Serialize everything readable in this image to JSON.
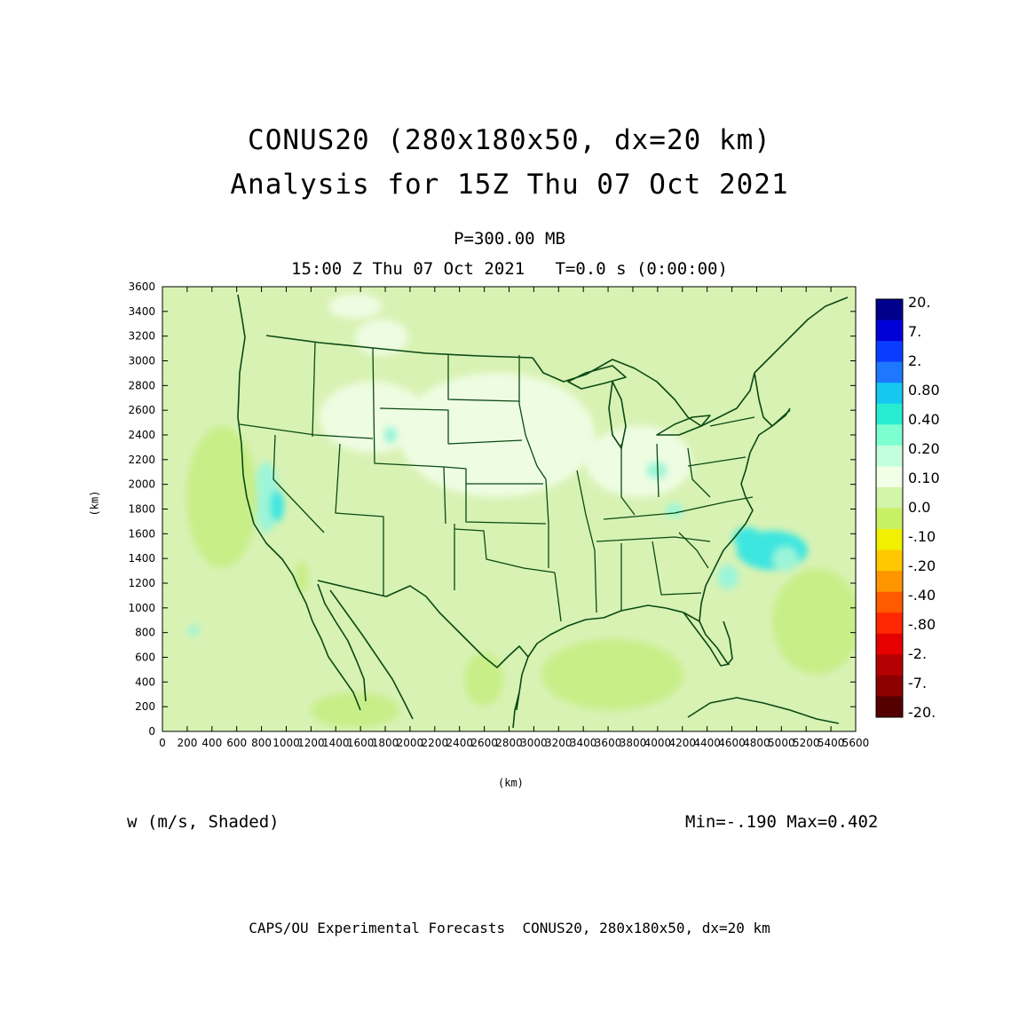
{
  "titles": {
    "line1": "CONUS20 (280x180x50, dx=20 km)",
    "line2": "Analysis for 15Z Thu 07 Oct 2021",
    "pressure": "P=300.00 MB",
    "time_line": "15:00 Z Thu 07 Oct 2021   T=0.0 s (0:00:00)"
  },
  "field_label": "w (m/s, Shaded)",
  "minmax": "Min=-.190 Max=0.402",
  "footer": "CAPS/OU Experimental Forecasts  CONUS20, 280x180x50, dx=20 km",
  "axes": {
    "x_unit": "(km)",
    "y_unit": "(km)",
    "x_ticks": [
      0,
      200,
      400,
      600,
      800,
      1000,
      1200,
      1400,
      1600,
      1800,
      2000,
      2200,
      2400,
      2600,
      2800,
      3000,
      3200,
      3400,
      3600,
      3800,
      4000,
      4200,
      4400,
      4600,
      4800,
      5000,
      5200,
      5400,
      5600
    ],
    "y_ticks": [
      0,
      200,
      400,
      600,
      800,
      1000,
      1200,
      1400,
      1600,
      1800,
      2000,
      2200,
      2400,
      2600,
      2800,
      3000,
      3200,
      3400,
      3600
    ],
    "x_range": [
      0,
      5600
    ],
    "y_range": [
      0,
      3600
    ]
  },
  "colorbar": {
    "labels": [
      "20.",
      "7.",
      "2.",
      "0.80",
      "0.40",
      "0.20",
      "0.10",
      "0.0",
      "-.10",
      "-.20",
      "-.40",
      "-.80",
      "-2.",
      "-7.",
      "-20."
    ],
    "colors": [
      "#00008c",
      "#0000d8",
      "#0a3cff",
      "#1e78ff",
      "#14c8f0",
      "#28ecd2",
      "#7dffd2",
      "#c3ffdc",
      "#f0ffe6",
      "#d2f5aa",
      "#c8f064",
      "#f0f000",
      "#ffc800",
      "#ff9600",
      "#ff5a00",
      "#ff2800",
      "#e60000",
      "#b40000",
      "#8c0000",
      "#550000"
    ]
  },
  "map_colors": {
    "background_field": "#d8f2b4",
    "positive_weak": "#eefde2",
    "positive": "#9cf5d8",
    "positive_strong": "#3ce6e0",
    "negative": "#c8ee88",
    "outline": "#0a4a14"
  }
}
